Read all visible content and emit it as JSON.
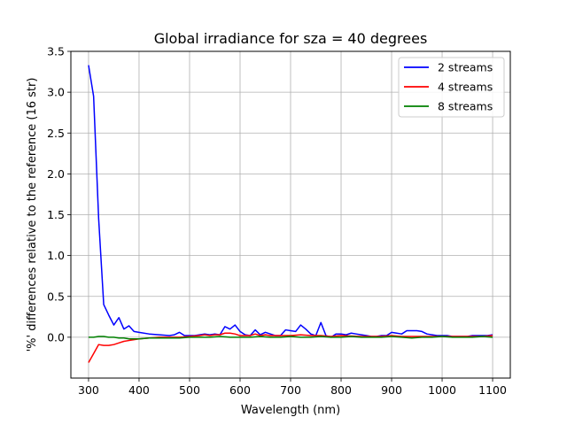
{
  "chart_data": {
    "type": "line",
    "title": "Global irradiance for sza = 40 degrees",
    "xlabel": "Wavelength (nm)",
    "ylabel": "'%' differences relative to the reference (16 str)",
    "xlim": [
      265,
      1135
    ],
    "ylim": [
      -0.5,
      3.5
    ],
    "xticks": [
      300,
      400,
      500,
      600,
      700,
      800,
      900,
      1000,
      1100
    ],
    "yticks": [
      0.0,
      0.5,
      1.0,
      1.5,
      2.0,
      2.5,
      3.0,
      3.5
    ],
    "xtick_labels": [
      "300",
      "400",
      "500",
      "600",
      "700",
      "800",
      "900",
      "1000",
      "1100"
    ],
    "ytick_labels": [
      "0.0",
      "0.5",
      "1.0",
      "1.5",
      "2.0",
      "2.5",
      "3.0",
      "3.5"
    ],
    "grid": true,
    "legend_position": "top-right",
    "series": [
      {
        "name": "2 streams",
        "color": "#0000ff",
        "x": [
          300,
          310,
          320,
          330,
          340,
          350,
          360,
          370,
          380,
          390,
          400,
          420,
          440,
          460,
          470,
          480,
          490,
          500,
          510,
          520,
          530,
          540,
          550,
          560,
          570,
          580,
          590,
          600,
          610,
          620,
          630,
          640,
          650,
          660,
          670,
          680,
          690,
          700,
          710,
          720,
          730,
          740,
          750,
          760,
          770,
          780,
          790,
          800,
          810,
          820,
          830,
          840,
          850,
          860,
          870,
          880,
          890,
          900,
          910,
          920,
          930,
          940,
          950,
          960,
          970,
          980,
          990,
          1000,
          1010,
          1020,
          1030,
          1040,
          1050,
          1060,
          1070,
          1080,
          1090,
          1100
        ],
        "y": [
          3.33,
          2.95,
          1.45,
          0.4,
          0.27,
          0.15,
          0.24,
          0.1,
          0.14,
          0.07,
          0.06,
          0.04,
          0.03,
          0.02,
          0.03,
          0.06,
          0.02,
          0.02,
          0.02,
          0.03,
          0.04,
          0.03,
          0.04,
          0.03,
          0.13,
          0.1,
          0.15,
          0.07,
          0.03,
          0.02,
          0.09,
          0.03,
          0.06,
          0.04,
          0.02,
          0.02,
          0.09,
          0.08,
          0.07,
          0.15,
          0.1,
          0.04,
          0.02,
          0.18,
          0.02,
          0.0,
          0.04,
          0.04,
          0.03,
          0.05,
          0.04,
          0.03,
          0.02,
          0.01,
          0.01,
          0.02,
          0.02,
          0.06,
          0.05,
          0.04,
          0.08,
          0.08,
          0.08,
          0.07,
          0.04,
          0.03,
          0.02,
          0.02,
          0.02,
          0.01,
          0.01,
          0.01,
          0.01,
          0.02,
          0.02,
          0.02,
          0.02,
          0.03
        ]
      },
      {
        "name": "4 streams",
        "color": "#ff0000",
        "x": [
          300,
          310,
          320,
          330,
          340,
          350,
          360,
          370,
          380,
          390,
          400,
          420,
          440,
          460,
          480,
          500,
          520,
          530,
          540,
          550,
          560,
          570,
          580,
          590,
          600,
          610,
          620,
          630,
          640,
          650,
          660,
          680,
          700,
          720,
          740,
          760,
          780,
          800,
          840,
          880,
          900,
          920,
          940,
          960,
          1000,
          1040,
          1080,
          1100
        ],
        "y": [
          -0.31,
          -0.2,
          -0.09,
          -0.1,
          -0.1,
          -0.09,
          -0.07,
          -0.05,
          -0.04,
          -0.03,
          -0.02,
          -0.01,
          0.0,
          0.0,
          0.0,
          0.01,
          0.02,
          0.03,
          0.02,
          0.03,
          0.03,
          0.05,
          0.05,
          0.04,
          0.02,
          0.02,
          0.02,
          0.04,
          0.02,
          0.03,
          0.02,
          0.02,
          0.02,
          0.03,
          0.02,
          0.02,
          0.01,
          0.02,
          0.01,
          0.01,
          0.02,
          0.01,
          0.01,
          0.01,
          0.01,
          0.01,
          0.01,
          0.02
        ]
      },
      {
        "name": "8 streams",
        "color": "#008000",
        "x": [
          300,
          310,
          320,
          330,
          340,
          350,
          360,
          370,
          380,
          390,
          400,
          420,
          440,
          460,
          480,
          500,
          520,
          540,
          560,
          580,
          600,
          620,
          640,
          660,
          680,
          700,
          720,
          740,
          760,
          780,
          800,
          820,
          840,
          860,
          880,
          900,
          920,
          940,
          960,
          980,
          1000,
          1020,
          1040,
          1060,
          1080,
          1100
        ],
        "y": [
          0.0,
          0.0,
          0.01,
          0.01,
          0.0,
          0.0,
          -0.01,
          -0.01,
          -0.02,
          -0.02,
          -0.02,
          -0.01,
          -0.01,
          -0.01,
          -0.01,
          0.0,
          0.0,
          0.0,
          0.01,
          0.0,
          0.0,
          0.0,
          0.01,
          0.0,
          0.0,
          0.01,
          0.0,
          0.0,
          0.01,
          0.0,
          0.0,
          0.01,
          0.0,
          0.0,
          0.0,
          0.01,
          0.0,
          -0.01,
          0.0,
          0.0,
          0.01,
          0.0,
          0.0,
          0.0,
          0.01,
          0.0
        ]
      }
    ]
  }
}
